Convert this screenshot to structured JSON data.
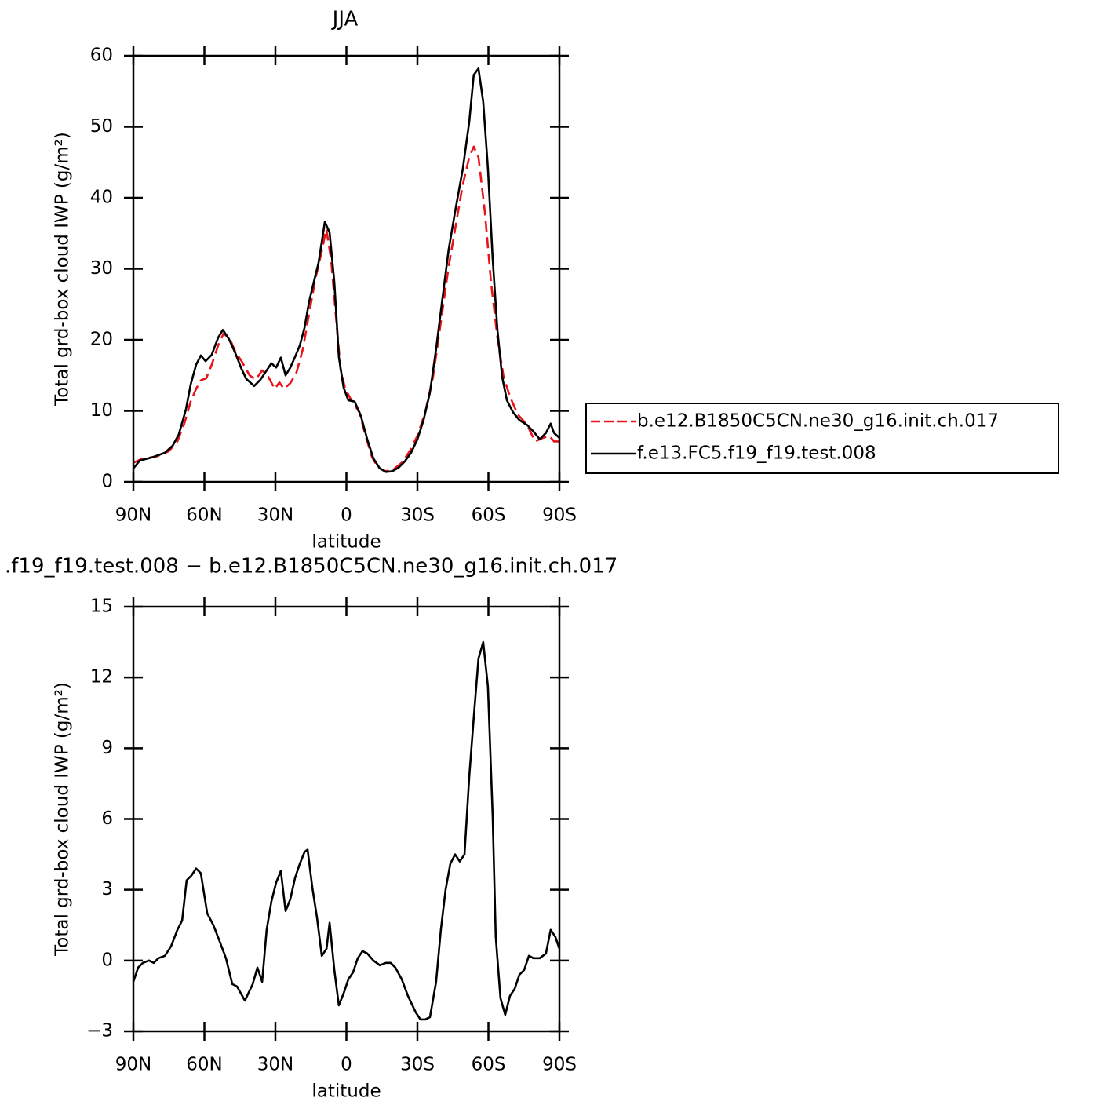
{
  "chart_data": [
    {
      "type": "line",
      "title": "JJA",
      "xlabel": "latitude",
      "ylabel": "Total grd-box cloud IWP (g/m²)",
      "xlim": [
        90,
        -90
      ],
      "xticks": [
        {
          "value": 90,
          "label": "90N"
        },
        {
          "value": 60,
          "label": "60N"
        },
        {
          "value": 30,
          "label": "30N"
        },
        0,
        {
          "value": -30,
          "label": "30S"
        },
        {
          "value": -60,
          "label": "60S"
        },
        {
          "value": -90,
          "label": "90S"
        }
      ],
      "ylim": [
        0,
        60
      ],
      "yticks": [
        0,
        10,
        20,
        30,
        40,
        50,
        60
      ],
      "legend": "right",
      "series": [
        {
          "name": "b.e12.B1850C5CN.ne30_g16.init.ch.017",
          "color": "#e8141a",
          "dash": "dashed",
          "x": [
            90,
            86.7,
            80.1,
            75.1,
            71.4,
            68.5,
            65.8,
            63.5,
            61.5,
            59.2,
            56.9,
            54.2,
            51.9,
            49.2,
            46.9,
            44.3,
            40.9,
            38.3,
            35.6,
            33.0,
            30.3,
            28.3,
            26.4,
            23.7,
            21.1,
            18.4,
            15.8,
            13.1,
            10.4,
            8.5,
            6.5,
            4.5,
            2.5,
            0.5,
            -2.1,
            -5.5,
            -8.1,
            -10.8,
            -13.4,
            -16.7,
            -20.0,
            -23.4,
            -26.7,
            -30.0,
            -33.3,
            -36.6,
            -39.9,
            -43.2,
            -46.6,
            -49.2,
            -51.9,
            -53.8,
            -55.8,
            -58.5,
            -61.1,
            -63.8,
            -66.4,
            -69.1,
            -72.4,
            -76.4,
            -79.7,
            -83.0,
            -85.7,
            -87.7,
            -90
          ],
          "values": [
            2.7,
            3.2,
            3.6,
            4.3,
            5.7,
            8.2,
            11.3,
            13.1,
            14.3,
            14.6,
            16.5,
            19.2,
            20.9,
            20.1,
            18.3,
            17.0,
            15.0,
            14.4,
            15.7,
            14.8,
            13.1,
            14.0,
            13.1,
            13.9,
            15.4,
            18.7,
            23.6,
            28.6,
            32.5,
            35.6,
            31.4,
            23.6,
            15.9,
            13.1,
            11.5,
            9.8,
            6.5,
            3.5,
            2.0,
            1.5,
            1.8,
            2.7,
            4.3,
            6.5,
            9.8,
            14.8,
            22.5,
            30.3,
            36.9,
            41.9,
            45.7,
            47.2,
            45.7,
            38.0,
            28.1,
            20.3,
            14.8,
            12.0,
            9.5,
            8.0,
            5.7,
            6.2,
            6.5,
            5.7,
            5.7
          ]
        },
        {
          "name": "f.e13.FC5.f19_f19.test.008",
          "color": "#000000",
          "dash": "solid",
          "x": [
            90,
            87.3,
            81.7,
            76.7,
            73.4,
            70.8,
            67.8,
            65.8,
            63.5,
            61.5,
            59.5,
            56.9,
            54.2,
            52.2,
            49.6,
            46.9,
            44.3,
            42.3,
            39.0,
            36.3,
            33.7,
            31.7,
            29.7,
            27.7,
            25.7,
            23.7,
            21.7,
            19.7,
            17.7,
            15.8,
            13.8,
            11.8,
            9.1,
            7.1,
            5.1,
            3.2,
            1.2,
            -0.8,
            -3.5,
            -6.1,
            -8.8,
            -11.4,
            -14.1,
            -16.7,
            -19.4,
            -22.0,
            -24.7,
            -27.3,
            -30.0,
            -32.6,
            -35.3,
            -37.9,
            -40.6,
            -43.2,
            -45.9,
            -49.2,
            -51.9,
            -53.8,
            -55.8,
            -57.8,
            -59.8,
            -61.8,
            -63.8,
            -65.8,
            -67.8,
            -70.4,
            -73.1,
            -76.4,
            -79.0,
            -81.7,
            -84.3,
            -86.3,
            -87.7,
            -90
          ],
          "values": [
            1.9,
            3.0,
            3.5,
            4.1,
            5.1,
            6.7,
            10.2,
            13.7,
            16.5,
            17.8,
            17.0,
            17.9,
            20.3,
            21.4,
            20.1,
            18.1,
            15.9,
            14.5,
            13.5,
            14.4,
            15.7,
            16.7,
            16.1,
            17.5,
            15.0,
            16.1,
            17.6,
            19.2,
            21.7,
            25.3,
            28.1,
            30.8,
            36.6,
            35.1,
            28.1,
            17.6,
            13.3,
            11.5,
            11.3,
            9.3,
            6.0,
            3.3,
            1.9,
            1.4,
            1.5,
            2.0,
            2.9,
            4.1,
            6.0,
            8.7,
            12.6,
            18.7,
            25.9,
            32.7,
            38.0,
            44.1,
            50.7,
            57.3,
            58.2,
            53.5,
            44.1,
            31.4,
            21.4,
            14.8,
            11.5,
            9.8,
            8.7,
            8.0,
            7.1,
            6.0,
            6.9,
            8.2,
            6.9,
            6.2
          ]
        }
      ]
    },
    {
      "type": "line",
      "title": ".f19_f19.test.008 − b.e12.B1850C5CN.ne30_g16.init.ch.017",
      "xlabel": "latitude",
      "ylabel": "Total grd-box cloud IWP (g/m²)",
      "xlim": [
        90,
        -90
      ],
      "xticks": [
        {
          "value": 90,
          "label": "90N"
        },
        {
          "value": 60,
          "label": "60N"
        },
        {
          "value": 30,
          "label": "30N"
        },
        0,
        {
          "value": -30,
          "label": "30S"
        },
        {
          "value": -60,
          "label": "60S"
        },
        {
          "value": -90,
          "label": "90S"
        }
      ],
      "ylim": [
        -3,
        15
      ],
      "yticks": [
        {
          "value": -3,
          "label": "−3"
        },
        0,
        3,
        6,
        9,
        12,
        15
      ],
      "series": [
        {
          "color": "#000000",
          "dash": "solid",
          "x": [
            90,
            88.0,
            86.0,
            83.4,
            81.4,
            79.4,
            76.7,
            74.1,
            71.4,
            69.4,
            67.5,
            65.5,
            63.5,
            61.5,
            58.8,
            56.2,
            53.5,
            50.9,
            48.2,
            46.2,
            42.9,
            39.6,
            37.6,
            35.6,
            33.7,
            31.7,
            29.7,
            27.7,
            25.7,
            23.7,
            21.7,
            19.7,
            17.7,
            16.4,
            14.4,
            12.4,
            10.4,
            8.4,
            7.1,
            5.1,
            3.2,
            1.2,
            -0.8,
            -2.8,
            -4.8,
            -6.8,
            -8.8,
            -11.4,
            -14.1,
            -16.7,
            -18.7,
            -20.7,
            -23.4,
            -26.0,
            -29.3,
            -31.3,
            -33.3,
            -35.3,
            -37.9,
            -39.9,
            -41.9,
            -43.9,
            -45.9,
            -47.9,
            -49.9,
            -51.9,
            -53.8,
            -55.8,
            -57.8,
            -59.8,
            -61.8,
            -63.1,
            -65.1,
            -67.1,
            -69.1,
            -71.1,
            -73.1,
            -75.1,
            -77.1,
            -79.0,
            -81.7,
            -84.3,
            -86.3,
            -88.3,
            -90
          ],
          "values": [
            -0.9,
            -0.3,
            -0.1,
            0,
            -0.1,
            0.1,
            0.2,
            0.6,
            1.3,
            1.7,
            3.4,
            3.6,
            3.9,
            3.7,
            2.0,
            1.5,
            0.8,
            0.1,
            -1.0,
            -1.1,
            -1.7,
            -1.0,
            -0.3,
            -0.9,
            1.3,
            2.5,
            3.3,
            3.8,
            2.1,
            2.6,
            3.5,
            4.1,
            4.6,
            4.7,
            3.1,
            1.8,
            0.2,
            0.5,
            1.6,
            -0.4,
            -1.9,
            -1.4,
            -0.8,
            -0.5,
            0.1,
            0.4,
            0.3,
            0,
            -0.2,
            -0.1,
            -0.1,
            -0.3,
            -0.8,
            -1.5,
            -2.2,
            -2.5,
            -2.5,
            -2.4,
            -0.9,
            1.3,
            3.0,
            4.1,
            4.5,
            4.2,
            4.5,
            7.8,
            10.3,
            12.8,
            13.5,
            11.6,
            6.1,
            1.0,
            -1.6,
            -2.3,
            -1.5,
            -1.2,
            -0.6,
            -0.4,
            0.2,
            0.1,
            0.1,
            0.3,
            1.3,
            1.0,
            0.5
          ]
        }
      ]
    }
  ]
}
